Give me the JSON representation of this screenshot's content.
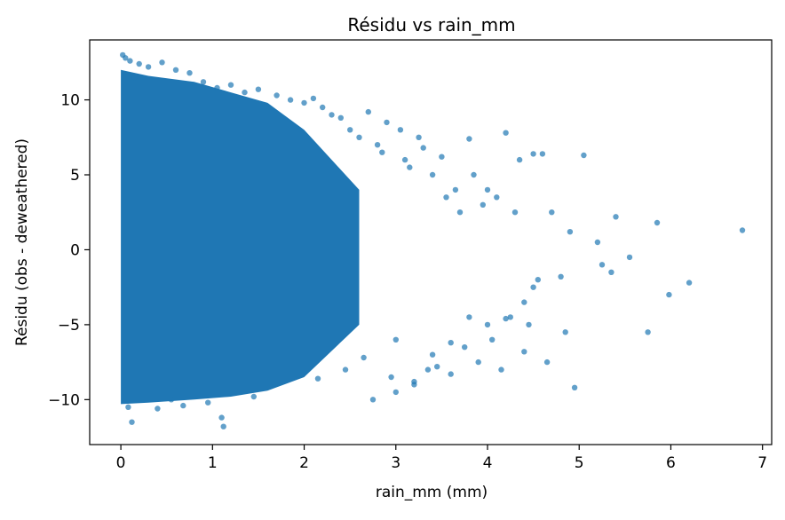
{
  "chart_data": {
    "type": "scatter",
    "title": "Résidu vs rain_mm",
    "xlabel": "rain_mm (mm)",
    "ylabel": "Résidu (obs - deweathered)",
    "xlim": [
      -0.34,
      7.1
    ],
    "ylim": [
      -13.0,
      14.0
    ],
    "x_ticks": [
      0,
      1,
      2,
      3,
      4,
      5,
      6,
      7
    ],
    "x_tick_labels": [
      "0",
      "1",
      "2",
      "3",
      "4",
      "5",
      "6",
      "7"
    ],
    "y_ticks": [
      -10,
      -5,
      0,
      5,
      10
    ],
    "y_tick_labels": [
      "−10",
      "−5",
      "0",
      "5",
      "10"
    ],
    "grid": false,
    "legend": "none",
    "point_color": "#1f77b4",
    "dense_region": {
      "note_free": true,
      "x_range": [
        0.0,
        2.6
      ],
      "y_range": [
        -10.0,
        10.0
      ]
    },
    "series": [
      {
        "x": [
          0.02,
          0.05,
          0.1,
          0.15,
          0.2,
          0.3,
          0.45,
          0.6,
          0.75,
          0.9,
          1.05,
          1.12,
          1.2,
          1.35,
          1.5,
          1.7,
          1.85,
          2.0,
          2.1,
          2.2,
          2.3,
          2.4,
          2.5,
          2.6,
          2.7,
          2.75,
          2.8,
          2.85,
          2.9,
          2.95,
          3.0,
          3.05,
          3.1,
          3.15,
          3.2,
          3.25,
          3.3,
          3.35,
          3.4,
          3.45,
          3.5,
          3.55,
          3.6,
          3.65,
          3.7,
          3.75,
          3.8,
          3.85,
          3.9,
          3.95,
          4.0,
          4.05,
          4.1,
          4.15,
          4.2,
          4.25,
          4.3,
          4.35,
          4.4,
          4.45,
          4.5,
          4.55,
          4.6,
          4.65,
          4.7,
          4.8,
          4.85,
          4.9,
          4.95,
          5.05,
          5.2,
          5.25,
          5.35,
          5.4,
          5.55,
          5.75,
          5.85,
          5.98,
          6.2,
          6.78,
          0.08,
          0.55,
          1.1,
          0.12,
          0.4,
          0.68,
          0.95,
          1.45,
          2.15,
          2.45,
          2.65,
          3.0,
          3.2,
          3.4,
          3.6,
          3.8,
          4.0,
          4.2,
          4.4,
          4.5
        ],
        "y": [
          13.0,
          12.8,
          12.6,
          11.5,
          12.4,
          12.2,
          12.5,
          12.0,
          11.8,
          11.2,
          10.8,
          -11.8,
          11.0,
          10.5,
          10.7,
          10.3,
          10.0,
          9.8,
          10.1,
          9.5,
          9.0,
          8.8,
          8.0,
          7.5,
          9.2,
          -10.0,
          7.0,
          6.5,
          8.5,
          -8.5,
          -9.5,
          8.0,
          6.0,
          5.5,
          -9.0,
          7.5,
          6.8,
          -8.0,
          5.0,
          -7.8,
          6.2,
          3.5,
          -8.3,
          4.0,
          2.5,
          -6.5,
          7.4,
          5.0,
          -7.5,
          3.0,
          4.0,
          -6.0,
          3.5,
          -8.0,
          7.8,
          -4.5,
          2.5,
          6.0,
          -6.8,
          -5.0,
          6.4,
          -2.0,
          6.4,
          -7.5,
          2.5,
          -1.8,
          -5.5,
          1.2,
          -9.2,
          6.3,
          0.5,
          -1.0,
          -1.5,
          2.2,
          -0.5,
          -5.5,
          1.8,
          -3.0,
          -2.2,
          1.3,
          -10.5,
          -10.0,
          -11.2,
          -11.5,
          -10.6,
          -10.4,
          -10.2,
          -9.8,
          -8.6,
          -8.0,
          -7.2,
          -6.0,
          -8.8,
          -7.0,
          -6.2,
          -4.5,
          -5.0,
          -4.6,
          -3.5,
          -2.5
        ]
      }
    ]
  }
}
